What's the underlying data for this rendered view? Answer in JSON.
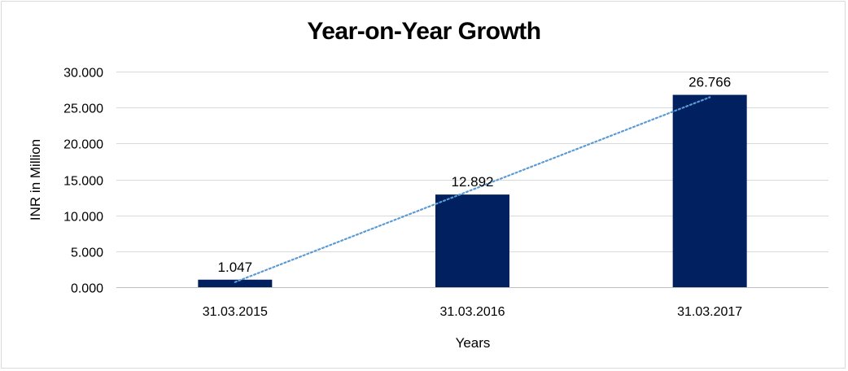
{
  "chart_data": {
    "type": "bar",
    "title": "Year-on-Year Growth",
    "xlabel": "Years",
    "ylabel": "INR in Million",
    "categories": [
      "31.03.2015",
      "31.03.2016",
      "31.03.2017"
    ],
    "values": [
      1.047,
      12.892,
      26.766
    ],
    "data_labels": [
      "1.047",
      "12.892",
      "26.766"
    ],
    "y_ticks": [
      "0.000",
      "5.000",
      "10.000",
      "15.000",
      "20.000",
      "25.000",
      "30.000"
    ],
    "ylim": [
      0,
      30
    ],
    "grid": true,
    "trendline": "linear",
    "bar_color": "#002060",
    "trendline_color": "#5b9bd5",
    "legend": "none"
  }
}
